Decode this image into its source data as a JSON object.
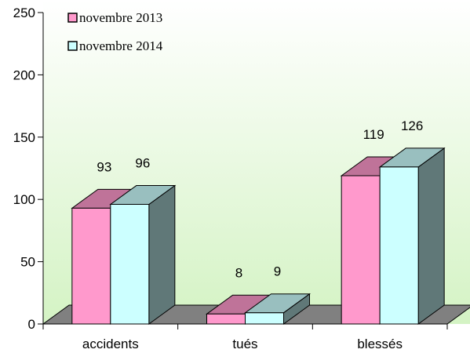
{
  "chart_data": {
    "type": "bar3d",
    "categories": [
      "accidents",
      "tués",
      "blessés"
    ],
    "series": [
      {
        "name": "novembre 2013",
        "color": "#ff99cc",
        "values": [
          93,
          8,
          119
        ]
      },
      {
        "name": "novembre 2014",
        "color": "#ccffff",
        "values": [
          96,
          9,
          126
        ]
      }
    ],
    "ylim": [
      0,
      250
    ],
    "yticks": [
      0,
      50,
      100,
      150,
      200,
      250
    ],
    "legend": "top-left"
  }
}
